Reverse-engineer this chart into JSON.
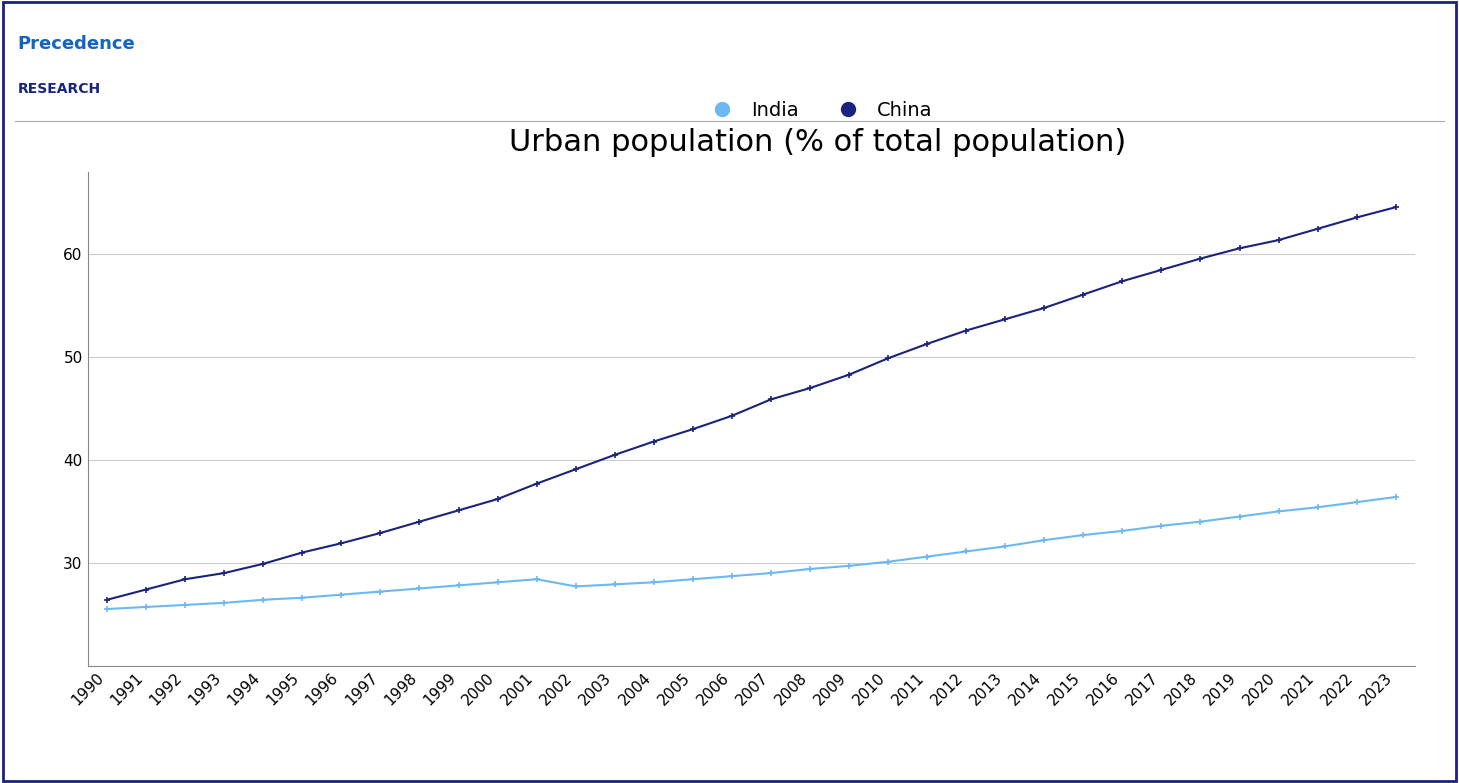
{
  "title": "Urban population (% of total population)",
  "years": [
    1990,
    1991,
    1992,
    1993,
    1994,
    1995,
    1996,
    1997,
    1998,
    1999,
    2000,
    2001,
    2002,
    2003,
    2004,
    2005,
    2006,
    2007,
    2008,
    2009,
    2010,
    2011,
    2012,
    2013,
    2014,
    2015,
    2016,
    2017,
    2018,
    2019,
    2020,
    2021,
    2022,
    2023
  ],
  "india": [
    25.5,
    25.7,
    25.9,
    26.1,
    26.4,
    26.6,
    26.9,
    27.2,
    27.5,
    27.8,
    28.1,
    28.4,
    27.7,
    27.9,
    28.1,
    28.4,
    28.7,
    29.0,
    29.4,
    29.7,
    30.1,
    30.6,
    31.1,
    31.6,
    32.2,
    32.7,
    33.1,
    33.6,
    34.0,
    34.5,
    35.0,
    35.4,
    35.9,
    36.4
  ],
  "china": [
    26.4,
    27.4,
    28.4,
    29.0,
    29.9,
    31.0,
    31.9,
    32.9,
    34.0,
    35.1,
    36.2,
    37.7,
    39.1,
    40.5,
    41.8,
    43.0,
    44.3,
    45.9,
    47.0,
    48.3,
    49.9,
    51.3,
    52.6,
    53.7,
    54.8,
    56.1,
    57.4,
    58.5,
    59.6,
    60.6,
    61.4,
    62.5,
    63.6,
    64.6
  ],
  "india_color": "#6BB8F5",
  "china_color": "#1a237e",
  "ylim_min": 20,
  "ylim_max": 68,
  "yticks": [
    30,
    40,
    50,
    60
  ],
  "background_color": "#ffffff",
  "plot_background": "#ffffff",
  "grid_color": "#cccccc",
  "title_fontsize": 22,
  "tick_fontsize": 11,
  "legend_fontsize": 14,
  "border_color": "#1a237e",
  "logo_precedence_color": "#1565C0",
  "logo_research_color": "#1a237e",
  "separator_color": "#aaaaaa"
}
